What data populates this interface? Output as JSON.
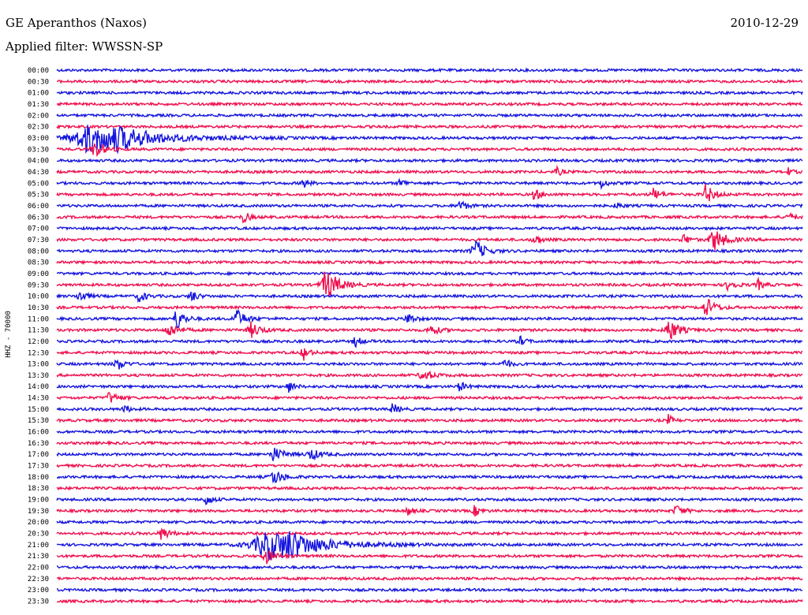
{
  "header": {
    "station": "GE Aperanthos (Naxos)",
    "date": "2010-12-29",
    "filter": "Applied filter: WWSSN-SP"
  },
  "chart_data": {
    "type": "line",
    "title": "GE Aperanthos (Naxos)",
    "subtitle": "Applied filter: WWSSN-SP",
    "date": "2010-12-29",
    "ylabel": "HHZ - 70000",
    "xlabel": "",
    "grid": false,
    "colors": [
      "#1616e0",
      "#f0104f"
    ],
    "tick_labels": [
      "00:00",
      "00:30",
      "01:00",
      "01:30",
      "02:00",
      "02:30",
      "03:00",
      "03:30",
      "04:00",
      "04:30",
      "05:00",
      "05:30",
      "06:00",
      "06:30",
      "07:00",
      "07:30",
      "08:00",
      "08:30",
      "09:00",
      "09:30",
      "10:00",
      "10:30",
      "11:00",
      "11:30",
      "12:00",
      "12:30",
      "13:00",
      "13:30",
      "14:00",
      "14:30",
      "15:00",
      "15:30",
      "16:00",
      "16:30",
      "17:00",
      "17:30",
      "18:00",
      "18:30",
      "19:00",
      "19:30",
      "20:00",
      "20:30",
      "21:00",
      "21:30",
      "22:00",
      "22:30",
      "23:00",
      "23:30"
    ],
    "series": [
      {
        "row": 6,
        "events": [
          [
            0.04,
            2.8,
            6.0
          ],
          [
            0.08,
            1.2,
            2.5
          ]
        ]
      },
      {
        "row": 7,
        "events": [
          [
            0.05,
            2.0,
            0.9
          ]
        ]
      },
      {
        "row": 9,
        "events": [
          [
            0.67,
            0.9,
            0.6
          ],
          [
            0.98,
            0.8,
            0.5
          ]
        ]
      },
      {
        "row": 10,
        "events": [
          [
            0.33,
            1.0,
            0.6
          ],
          [
            0.46,
            0.9,
            0.6
          ],
          [
            0.73,
            1.0,
            0.6
          ]
        ]
      },
      {
        "row": 11,
        "events": [
          [
            0.64,
            1.2,
            0.7
          ],
          [
            0.8,
            1.2,
            0.8
          ],
          [
            0.87,
            2.0,
            0.9
          ]
        ]
      },
      {
        "row": 12,
        "events": [
          [
            0.54,
            1.2,
            0.7
          ],
          [
            0.75,
            0.8,
            0.5
          ]
        ]
      },
      {
        "row": 13,
        "events": [
          [
            0.25,
            1.3,
            0.6
          ],
          [
            0.98,
            1.0,
            0.6
          ]
        ]
      },
      {
        "row": 15,
        "events": [
          [
            0.64,
            1.3,
            0.6
          ],
          [
            0.84,
            1.2,
            0.6
          ],
          [
            0.88,
            2.5,
            1.2
          ]
        ]
      },
      {
        "row": 16,
        "events": [
          [
            0.56,
            2.5,
            1.0
          ]
        ]
      },
      {
        "row": 19,
        "events": [
          [
            0.36,
            3.5,
            1.3
          ],
          [
            0.9,
            1.3,
            0.7
          ],
          [
            0.94,
            1.1,
            0.6
          ]
        ]
      },
      {
        "row": 20,
        "events": [
          [
            0.03,
            1.5,
            0.7
          ],
          [
            0.11,
            1.3,
            0.7
          ],
          [
            0.18,
            1.4,
            0.6
          ]
        ]
      },
      {
        "row": 21,
        "events": [
          [
            0.87,
            2.2,
            0.9
          ]
        ]
      },
      {
        "row": 22,
        "events": [
          [
            0.16,
            2.5,
            0.8
          ],
          [
            0.24,
            2.0,
            1.0
          ],
          [
            0.47,
            1.3,
            0.7
          ]
        ]
      },
      {
        "row": 23,
        "events": [
          [
            0.15,
            1.5,
            1.0
          ],
          [
            0.26,
            1.6,
            1.0
          ],
          [
            0.5,
            1.2,
            0.9
          ],
          [
            0.82,
            2.5,
            1.0
          ]
        ]
      },
      {
        "row": 24,
        "events": [
          [
            0.4,
            1.2,
            0.6
          ],
          [
            0.62,
            1.1,
            0.6
          ]
        ]
      },
      {
        "row": 25,
        "events": [
          [
            0.33,
            1.6,
            0.6
          ]
        ]
      },
      {
        "row": 26,
        "events": [
          [
            0.08,
            1.5,
            0.7
          ],
          [
            0.6,
            1.1,
            0.6
          ]
        ]
      },
      {
        "row": 27,
        "events": [
          [
            0.49,
            1.2,
            1.0
          ]
        ]
      },
      {
        "row": 28,
        "events": [
          [
            0.31,
            1.3,
            0.6
          ],
          [
            0.54,
            1.1,
            0.6
          ]
        ]
      },
      {
        "row": 29,
        "events": [
          [
            0.07,
            1.2,
            0.9
          ]
        ]
      },
      {
        "row": 30,
        "events": [
          [
            0.09,
            1.1,
            0.5
          ],
          [
            0.45,
            1.2,
            0.6
          ]
        ]
      },
      {
        "row": 31,
        "events": [
          [
            0.82,
            1.1,
            0.5
          ]
        ]
      },
      {
        "row": 34,
        "events": [
          [
            0.29,
            1.4,
            1.1
          ],
          [
            0.34,
            1.2,
            1.0
          ]
        ]
      },
      {
        "row": 36,
        "events": [
          [
            0.29,
            1.6,
            1.0
          ]
        ]
      },
      {
        "row": 38,
        "events": [
          [
            0.2,
            1.3,
            0.6
          ]
        ]
      },
      {
        "row": 39,
        "events": [
          [
            0.47,
            1.1,
            0.5
          ],
          [
            0.56,
            1.1,
            0.6
          ],
          [
            0.83,
            1.2,
            0.8
          ]
        ]
      },
      {
        "row": 41,
        "events": [
          [
            0.14,
            1.4,
            0.8
          ]
        ]
      },
      {
        "row": 42,
        "events": [
          [
            0.28,
            3.2,
            5.0
          ],
          [
            0.31,
            1.3,
            2.0
          ]
        ]
      },
      {
        "row": 43,
        "events": [
          [
            0.28,
            1.5,
            1.0
          ]
        ]
      }
    ]
  }
}
